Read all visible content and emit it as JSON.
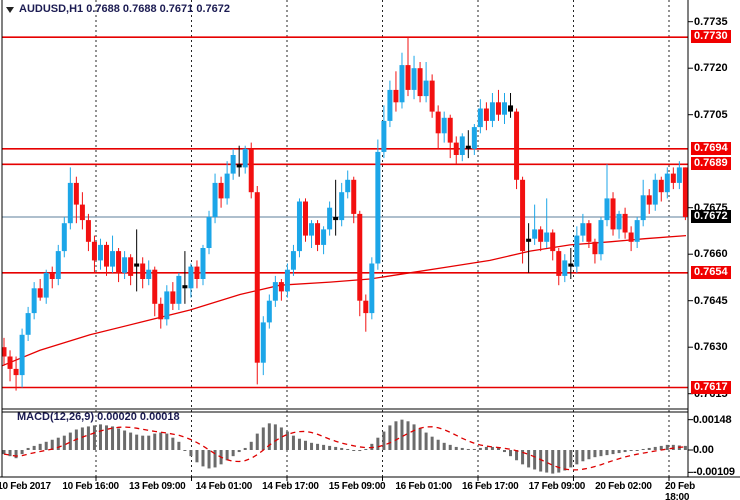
{
  "header": {
    "title": "AUDUSD,H1 0.7688 0.7688 0.7671 0.7672",
    "symbol": "AUDUSD",
    "timeframe": "H1",
    "open": "0.7688",
    "high": "0.7688",
    "low": "0.7671",
    "close": "0.7672"
  },
  "macd": {
    "label": "MACD(12,26,9) 0.00020 0.00018",
    "current_value": "0.00020",
    "current_signal": "0.00018"
  },
  "colors": {
    "up_candle": "#1ca6e8",
    "down_candle": "#f21010",
    "doji_candle": "#000000",
    "level_line": "#e60000",
    "ma_line": "#e60000",
    "signal_line": "#dd0000",
    "histogram_bar": "#6b6b6b",
    "current_price_line": "#7e99af",
    "level_label_bg": "#f00000",
    "current_label_bg": "#000000",
    "grid": "#000000",
    "text_dark_navy": "#1b1b52"
  },
  "chart_data": {
    "type": "candlestick",
    "title": "AUDUSD,H1",
    "price_divisor": 10000,
    "candles": [
      [
        7630,
        7633,
        7624,
        7627
      ],
      [
        7627,
        7629,
        7619,
        7623
      ],
      [
        7623,
        7627,
        7616,
        7621
      ],
      [
        7621,
        7636,
        7617,
        7634
      ],
      [
        7634,
        7643,
        7632,
        7641
      ],
      [
        7641,
        7651,
        7639,
        7649
      ],
      [
        7649,
        7652,
        7645,
        7646
      ],
      [
        7646,
        7655,
        7644,
        7654
      ],
      [
        7654,
        7656,
        7649,
        7652
      ],
      [
        7652,
        7663,
        7650,
        7661
      ],
      [
        7661,
        7672,
        7659,
        7670
      ],
      [
        7670,
        7688,
        7668,
        7683
      ],
      [
        7683,
        7685,
        7670,
        7676
      ],
      [
        7676,
        7680,
        7668,
        7671
      ],
      [
        7671,
        7673,
        7661,
        7664
      ],
      [
        7664,
        7666,
        7654,
        7658
      ],
      [
        7658,
        7665,
        7655,
        7663
      ],
      [
        7663,
        7664,
        7653,
        7656
      ],
      [
        7656,
        7666,
        7654,
        7661
      ],
      [
        7661,
        7662,
        7651,
        7654
      ],
      [
        7654,
        7661,
        7652,
        7659
      ],
      [
        7659,
        7660,
        7650,
        7653
      ],
      [
        7656,
        7668,
        7648,
        7657
      ],
      [
        7657,
        7659,
        7649,
        7652
      ],
      [
        7652,
        7658,
        7650,
        7655
      ],
      [
        7655,
        7656,
        7640,
        7644
      ],
      [
        7644,
        7646,
        7636,
        7639
      ],
      [
        7639,
        7650,
        7637,
        7648
      ],
      [
        7648,
        7651,
        7642,
        7644
      ],
      [
        7644,
        7654,
        7642,
        7653
      ],
      [
        7650,
        7661,
        7644,
        7649
      ],
      [
        7649,
        7657,
        7646,
        7656
      ],
      [
        7656,
        7658,
        7649,
        7652
      ],
      [
        7652,
        7663,
        7650,
        7662
      ],
      [
        7662,
        7674,
        7660,
        7672
      ],
      [
        7672,
        7686,
        7670,
        7683
      ],
      [
        7683,
        7685,
        7675,
        7678
      ],
      [
        7678,
        7690,
        7676,
        7686
      ],
      [
        7686,
        7694,
        7684,
        7692
      ],
      [
        7689,
        7695,
        7685,
        7688
      ],
      [
        7688,
        7695,
        7686,
        7694
      ],
      [
        7694,
        7696,
        7678,
        7680
      ],
      [
        7680,
        7682,
        7618,
        7625
      ],
      [
        7625,
        7640,
        7621,
        7638
      ],
      [
        7638,
        7647,
        7636,
        7645
      ],
      [
        7645,
        7653,
        7643,
        7651
      ],
      [
        7651,
        7652,
        7645,
        7648
      ],
      [
        7648,
        7657,
        7646,
        7655
      ],
      [
        7655,
        7663,
        7653,
        7661
      ],
      [
        7661,
        7678,
        7659,
        7677
      ],
      [
        7677,
        7678,
        7664,
        7666
      ],
      [
        7666,
        7671,
        7662,
        7670
      ],
      [
        7670,
        7671,
        7661,
        7663
      ],
      [
        7663,
        7669,
        7660,
        7668
      ],
      [
        7668,
        7677,
        7666,
        7675
      ],
      [
        7672,
        7684,
        7666,
        7671
      ],
      [
        7671,
        7683,
        7669,
        7680
      ],
      [
        7680,
        7687,
        7678,
        7684
      ],
      [
        7684,
        7685,
        7670,
        7673
      ],
      [
        7673,
        7674,
        7640,
        7645
      ],
      [
        7645,
        7647,
        7635,
        7641
      ],
      [
        7641,
        7659,
        7639,
        7657
      ],
      [
        7657,
        7697,
        7655,
        7693
      ],
      [
        7693,
        7708,
        7691,
        7703
      ],
      [
        7703,
        7716,
        7701,
        7713
      ],
      [
        7713,
        7719,
        7706,
        7709
      ],
      [
        7709,
        7725,
        7707,
        7721
      ],
      [
        7721,
        7730,
        7711,
        7713
      ],
      [
        7713,
        7724,
        7710,
        7720
      ],
      [
        7720,
        7722,
        7709,
        7711
      ],
      [
        7711,
        7722,
        7709,
        7716
      ],
      [
        7716,
        7718,
        7704,
        7706
      ],
      [
        7706,
        7708,
        7694,
        7699
      ],
      [
        7699,
        7706,
        7696,
        7704
      ],
      [
        7704,
        7705,
        7691,
        7696
      ],
      [
        7696,
        7698,
        7689,
        7692
      ],
      [
        7692,
        7699,
        7690,
        7698
      ],
      [
        7695,
        7700,
        7691,
        7694
      ],
      [
        7694,
        7702,
        7692,
        7701
      ],
      [
        7701,
        7710,
        7699,
        7707
      ],
      [
        7707,
        7709,
        7700,
        7703
      ],
      [
        7703,
        7712,
        7701,
        7709
      ],
      [
        7709,
        7713,
        7703,
        7705
      ],
      [
        7705,
        7712,
        7702,
        7709
      ],
      [
        7708,
        7712,
        7704,
        7706
      ],
      [
        7706,
        7707,
        7681,
        7684
      ],
      [
        7684,
        7685,
        7657,
        7661
      ],
      [
        7664,
        7670,
        7654,
        7665
      ],
      [
        7665,
        7676,
        7663,
        7668
      ],
      [
        7668,
        7669,
        7661,
        7664
      ],
      [
        7664,
        7678,
        7662,
        7667
      ],
      [
        7667,
        7668,
        7658,
        7661
      ],
      [
        7661,
        7662,
        7650,
        7653
      ],
      [
        7653,
        7660,
        7651,
        7658
      ],
      [
        7657,
        7662,
        7652,
        7656
      ],
      [
        7656,
        7669,
        7654,
        7666
      ],
      [
        7666,
        7673,
        7664,
        7670
      ],
      [
        7670,
        7671,
        7662,
        7664
      ],
      [
        7664,
        7665,
        7657,
        7660
      ],
      [
        7660,
        7672,
        7658,
        7671
      ],
      [
        7671,
        7689,
        7669,
        7678
      ],
      [
        7678,
        7680,
        7666,
        7668
      ],
      [
        7668,
        7674,
        7665,
        7673
      ],
      [
        7673,
        7675,
        7665,
        7667
      ],
      [
        7667,
        7669,
        7661,
        7664
      ],
      [
        7664,
        7672,
        7662,
        7671
      ],
      [
        7671,
        7684,
        7669,
        7679
      ],
      [
        7679,
        7681,
        7673,
        7676
      ],
      [
        7676,
        7686,
        7674,
        7684
      ],
      [
        7684,
        7685,
        7677,
        7680
      ],
      [
        7680,
        7688,
        7678,
        7686
      ],
      [
        7686,
        7688,
        7681,
        7683
      ],
      [
        7683,
        7690,
        7681,
        7688
      ],
      [
        7688,
        7688,
        7671,
        7672
      ]
    ],
    "doji_indices": [
      22,
      30,
      39,
      55,
      77,
      84,
      87,
      94
    ],
    "ma_points": [
      [
        2,
        7624
      ],
      [
        40,
        7629
      ],
      [
        90,
        7634
      ],
      [
        140,
        7638
      ],
      [
        190,
        7642
      ],
      [
        240,
        7647
      ],
      [
        280,
        7650
      ],
      [
        330,
        7651
      ],
      [
        370,
        7652
      ],
      [
        410,
        7654
      ],
      [
        450,
        7656
      ],
      [
        490,
        7658
      ],
      [
        530,
        7661
      ],
      [
        570,
        7663
      ],
      [
        610,
        7664
      ],
      [
        645,
        7665
      ],
      [
        686,
        7666
      ]
    ],
    "levels": [
      {
        "price": 7730,
        "label": "0.7730"
      },
      {
        "price": 7694,
        "label": "0.7694"
      },
      {
        "price": 7689,
        "label": "0.7689"
      },
      {
        "price": 7654,
        "label": "0.7654"
      },
      {
        "price": 7617,
        "label": "0.7617"
      }
    ],
    "current_price": {
      "price": 7672,
      "label": "0.7672"
    },
    "price_ticks": [
      {
        "price": 7735,
        "label": "0.7735"
      },
      {
        "price": 7720,
        "label": "0.7720"
      },
      {
        "price": 7705,
        "label": "0.7705"
      },
      {
        "price": 7675,
        "label": "0.7675"
      },
      {
        "price": 7660,
        "label": "0.7660"
      },
      {
        "price": 7645,
        "label": "0.7645"
      },
      {
        "price": 7630,
        "label": "0.7630"
      },
      {
        "price": 7615,
        "label": "0.7615"
      }
    ],
    "macd_histogram": [
      -2,
      -3,
      -4,
      -2,
      1,
      2,
      3,
      4,
      5,
      6,
      7,
      8.5,
      10,
      11,
      11.5,
      12,
      12.5,
      12,
      11.5,
      10.5,
      9.5,
      8.5,
      7.5,
      7,
      7,
      8,
      8.5,
      8,
      6,
      4,
      0,
      -3,
      -6,
      -8,
      -9,
      -8.5,
      -7,
      -5,
      -3,
      -1,
      1,
      4,
      8,
      11,
      13,
      12.5,
      11,
      9,
      7,
      5.5,
      4.5,
      3.5,
      3,
      2.5,
      2,
      1.5,
      1,
      0.5,
      0,
      -0.5,
      0.5,
      3,
      6,
      9,
      12,
      14,
      14.8,
      14,
      12.5,
      10.5,
      8.5,
      6.5,
      5,
      3.5,
      2.5,
      1.5,
      1,
      0.5,
      0.5,
      1,
      1.5,
      1.5,
      1,
      -1,
      -3,
      -5,
      -7,
      -8.5,
      -9.5,
      -10.5,
      -11,
      -11.5,
      -11,
      -10,
      -8.5,
      -7,
      -5.5,
      -4.5,
      -3.5,
      -3,
      -2.5,
      -2,
      -1.5,
      -1,
      -0.5,
      0,
      0.5,
      1,
      1.5,
      2,
      2.5,
      2.5,
      2.2,
      2
    ],
    "macd_unit": 0.0001,
    "signal_sma_period": 9,
    "macd_ticks": [
      {
        "value": 14.8,
        "label": "0.00148"
      },
      {
        "value": 0,
        "label": "0.00"
      },
      {
        "value": -10.9,
        "label": "-0.00109"
      }
    ],
    "time_labels": [
      "10 Feb 2017",
      "10 Feb 16:00",
      "13 Feb 09:00",
      "14 Feb 01:00",
      "14 Feb 17:00",
      "15 Feb 09:00",
      "16 Feb 01:00",
      "16 Feb 17:00",
      "17 Feb 09:00",
      "20 Feb 02:00",
      "20 Feb 18:00"
    ]
  }
}
